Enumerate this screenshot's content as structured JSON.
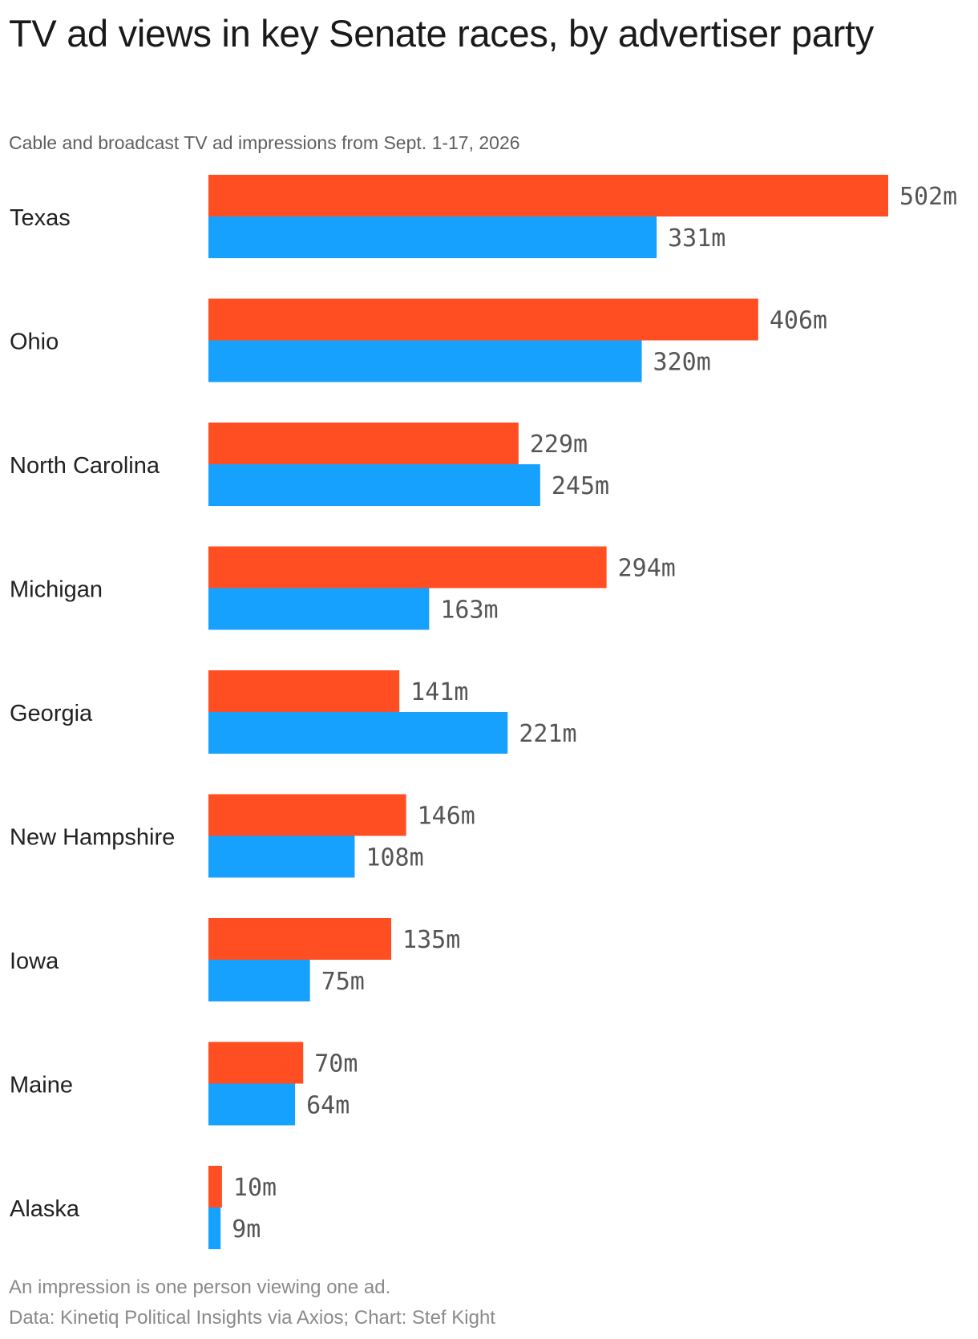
{
  "header": {
    "title": "TV ad views in key Senate races, by advertiser party",
    "subtitle": "Cable and broadcast TV ad impressions from Sept. 1-17, 2026"
  },
  "footer": {
    "note": "An impression is one person viewing one ad.",
    "source": "Data: Kinetiq Political Insights via Axios; Chart: Stef Kight"
  },
  "colors": {
    "republican": "#ff4f22",
    "democrat": "#17a1ff"
  },
  "chart_data": {
    "type": "bar",
    "orientation": "horizontal",
    "unit_suffix": "m",
    "categories": [
      "Texas",
      "Ohio",
      "North Carolina",
      "Michigan",
      "Georgia",
      "New Hampshire",
      "Iowa",
      "Maine",
      "Alaska"
    ],
    "series": [
      {
        "color": "#ff4f22",
        "values": [
          502,
          406,
          229,
          294,
          141,
          146,
          135,
          70,
          10
        ]
      },
      {
        "color": "#17a1ff",
        "values": [
          331,
          320,
          245,
          163,
          221,
          108,
          75,
          64,
          9
        ]
      }
    ],
    "xlim": [
      0,
      502
    ],
    "grid": false,
    "legend": "none"
  }
}
